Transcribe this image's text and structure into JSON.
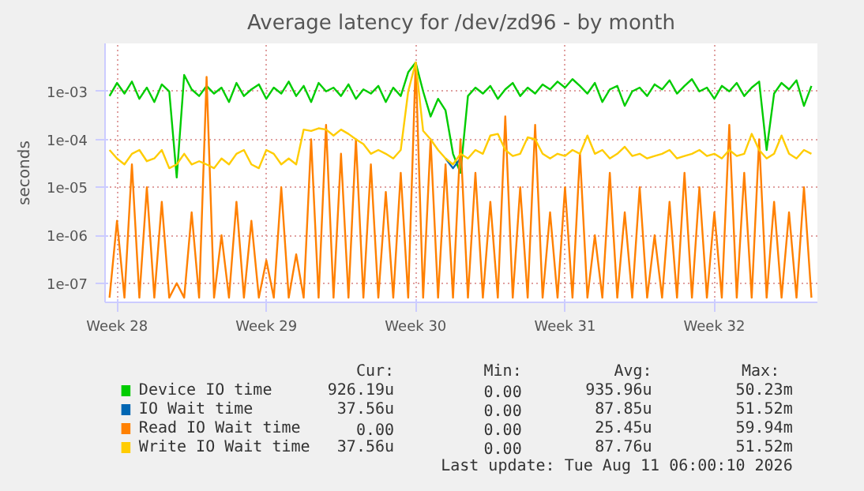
{
  "chart_data": {
    "type": "line",
    "title": "Average latency for /dev/zd96 - by month",
    "ylabel": "seconds",
    "log": "y",
    "grid": true,
    "legend": "bottom",
    "marker": "none",
    "line_style": "solid",
    "ylim": [
      4e-08,
      0.01
    ],
    "yticks": [
      {
        "value": 1e-07,
        "label": "1e-07"
      },
      {
        "value": 1e-06,
        "label": "1e-06"
      },
      {
        "value": 1e-05,
        "label": "1e-05"
      },
      {
        "value": 0.0001,
        "label": "1e-04"
      },
      {
        "value": 0.001,
        "label": "1e-03"
      }
    ],
    "categories": [
      null,
      "Week 28",
      null,
      null,
      null,
      null,
      null,
      null,
      null,
      null,
      null,
      null,
      null,
      null,
      null,
      null,
      null,
      null,
      null,
      null,
      null,
      "Week 29",
      null,
      null,
      null,
      null,
      null,
      null,
      null,
      null,
      null,
      null,
      null,
      null,
      null,
      null,
      null,
      null,
      null,
      null,
      null,
      "Week 30",
      null,
      null,
      null,
      null,
      null,
      null,
      null,
      null,
      null,
      null,
      null,
      null,
      null,
      null,
      null,
      null,
      null,
      null,
      null,
      "Week 31",
      null,
      null,
      null,
      null,
      null,
      null,
      null,
      null,
      null,
      null,
      null,
      null,
      null,
      null,
      null,
      null,
      null,
      null,
      null,
      "Week 32",
      null,
      null,
      null,
      null,
      null,
      null,
      null,
      null,
      null,
      null,
      null,
      null,
      null
    ],
    "series": [
      {
        "name": "Device IO time",
        "color": "#00cc00",
        "values": [
          0.0008,
          0.0015,
          0.0009,
          0.0016,
          0.0007,
          0.0012,
          0.0006,
          0.0014,
          0.001,
          1.6e-05,
          0.0022,
          0.0011,
          0.0008,
          0.0013,
          0.0009,
          0.0012,
          0.0006,
          0.0015,
          0.0008,
          0.0011,
          0.0014,
          0.0007,
          0.0012,
          0.0009,
          0.0016,
          0.0008,
          0.0013,
          0.0006,
          0.0015,
          0.001,
          0.0012,
          0.0008,
          0.0014,
          0.0007,
          0.0011,
          0.0009,
          0.0013,
          0.0006,
          0.0012,
          0.0008,
          0.0025,
          0.004,
          0.001,
          0.0003,
          0.0007,
          0.0004,
          5e-05,
          2e-05,
          0.0008,
          0.0012,
          0.0009,
          0.0013,
          0.0007,
          0.0011,
          0.0015,
          0.0008,
          0.0012,
          0.0009,
          0.0014,
          0.0011,
          0.0016,
          0.0012,
          0.0018,
          0.0013,
          0.0009,
          0.0015,
          0.0006,
          0.0011,
          0.0013,
          0.0005,
          0.001,
          0.0012,
          0.0008,
          0.0014,
          0.0011,
          0.0017,
          0.0009,
          0.0013,
          0.0018,
          0.001,
          0.0012,
          0.0007,
          0.0013,
          0.001,
          0.0015,
          0.0008,
          0.0012,
          0.0016,
          6e-05,
          0.0009,
          0.0015,
          0.0011,
          0.0017,
          0.0005,
          0.0013
        ]
      },
      {
        "name": "IO Wait time",
        "color": "#0066b3",
        "values": [
          null,
          null,
          null,
          null,
          null,
          null,
          null,
          null,
          null,
          null,
          null,
          null,
          null,
          null,
          null,
          null,
          null,
          null,
          null,
          null,
          null,
          null,
          null,
          null,
          null,
          null,
          null,
          null,
          null,
          null,
          null,
          null,
          null,
          null,
          null,
          null,
          null,
          null,
          null,
          null,
          null,
          null,
          null,
          null,
          null,
          4e-05,
          2.5e-05,
          4e-05,
          null,
          null,
          null,
          null,
          null,
          null,
          null,
          null,
          null,
          null,
          null,
          null,
          null,
          null,
          null,
          null,
          null,
          null,
          null,
          null,
          null,
          null,
          null,
          null,
          null,
          null,
          null,
          null,
          null,
          null,
          null,
          null,
          null,
          null,
          null,
          null,
          null,
          null,
          null,
          null,
          null,
          null,
          null,
          null,
          null,
          null,
          null
        ]
      },
      {
        "name": "Read IO Wait time",
        "color": "#ff8000",
        "values": [
          5e-08,
          2e-06,
          5e-08,
          3e-05,
          5e-08,
          1e-05,
          5e-08,
          5e-06,
          5e-08,
          1e-07,
          5e-08,
          3e-06,
          5e-08,
          0.002,
          5e-08,
          1e-06,
          5e-08,
          5e-06,
          5e-08,
          2e-06,
          5e-08,
          3e-07,
          5e-08,
          1e-05,
          5e-08,
          4e-07,
          5e-08,
          0.0001,
          5e-08,
          0.0002,
          5e-08,
          5e-05,
          5e-08,
          0.0001,
          5e-08,
          3e-05,
          5e-08,
          8e-06,
          5e-08,
          2e-05,
          5e-08,
          0.004,
          5e-08,
          0.0001,
          5e-08,
          3e-05,
          5e-08,
          0.0001,
          5e-08,
          2e-05,
          5e-08,
          5e-06,
          5e-08,
          0.0003,
          5e-08,
          1e-05,
          5e-08,
          0.0002,
          5e-08,
          3e-06,
          5e-08,
          1e-05,
          5e-08,
          5e-05,
          5e-08,
          1e-06,
          5e-08,
          2e-05,
          5e-08,
          3e-06,
          5e-08,
          1e-05,
          5e-08,
          1e-06,
          5e-08,
          5e-06,
          5e-08,
          2e-05,
          5e-08,
          1e-05,
          5e-08,
          3e-06,
          5e-08,
          0.0002,
          5e-08,
          2e-05,
          5e-08,
          0.0001,
          5e-08,
          5e-06,
          5e-08,
          3e-06,
          5e-08,
          1e-05,
          5e-08
        ]
      },
      {
        "name": "Write IO Wait time",
        "color": "#ffcc00",
        "values": [
          6e-05,
          4e-05,
          3e-05,
          5e-05,
          6e-05,
          3.5e-05,
          4e-05,
          6e-05,
          2.5e-05,
          3e-05,
          5e-05,
          3e-05,
          3.5e-05,
          3e-05,
          2.5e-05,
          4e-05,
          3e-05,
          5e-05,
          6e-05,
          3e-05,
          2.5e-05,
          6e-05,
          5e-05,
          3e-05,
          4e-05,
          3e-05,
          0.00016,
          0.00015,
          0.00017,
          0.00016,
          0.00012,
          0.00016,
          0.00013,
          0.0001,
          8e-05,
          5e-05,
          6e-05,
          5e-05,
          4e-05,
          6e-05,
          0.001,
          0.004,
          0.00015,
          0.0001,
          6e-05,
          4e-05,
          3e-05,
          5e-05,
          4e-05,
          6e-05,
          5e-05,
          0.00012,
          0.00013,
          6e-05,
          4.5e-05,
          5e-05,
          0.00011,
          0.0001,
          5e-05,
          4e-05,
          5e-05,
          4.5e-05,
          6e-05,
          5e-05,
          0.00012,
          5e-05,
          6e-05,
          4e-05,
          5e-05,
          7e-05,
          4.5e-05,
          5e-05,
          4e-05,
          4.5e-05,
          5e-05,
          6e-05,
          4e-05,
          4.5e-05,
          5e-05,
          6e-05,
          4.5e-05,
          5e-05,
          4e-05,
          6e-05,
          4.5e-05,
          5e-05,
          0.00013,
          6e-05,
          4e-05,
          5e-05,
          0.00012,
          5e-05,
          4e-05,
          6e-05,
          5e-05
        ]
      }
    ],
    "annotations": [
      "Cur:",
      "Min:",
      "Avg:",
      "Max:",
      "926.19u",
      "0.00",
      "935.96u",
      "50.23m",
      "37.56u",
      "0.00",
      "87.85u",
      "51.52m",
      "0.00",
      "0.00",
      "25.45u",
      "59.94m",
      "37.56u",
      "0.00",
      "87.76u",
      "51.52m",
      "Last update: Tue Aug 11 06:00:10 2026"
    ]
  }
}
